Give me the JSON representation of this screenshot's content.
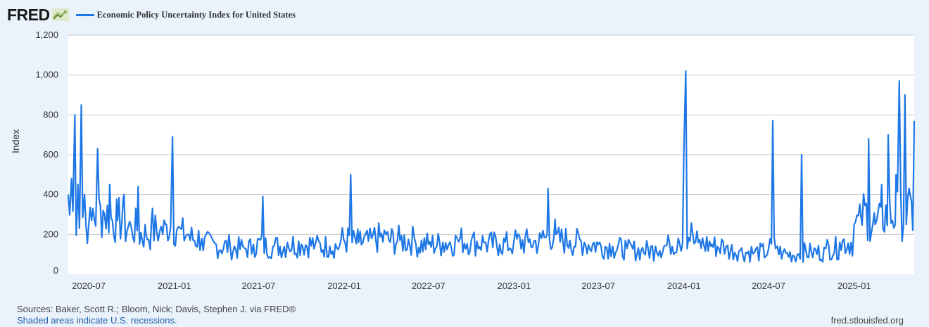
{
  "header": {
    "logo_text": "FRED",
    "logo_mark": "fred-chart-icon",
    "legend_label": "Economic Policy Uncertainty Index for United States"
  },
  "colors": {
    "series": "#1e77e6",
    "background": "#eaf2fb",
    "plot": "#ffffff",
    "grid": "#c8c8c8"
  },
  "footer": {
    "sources": "Sources: Baker, Scott R.; Bloom, Nick; Davis, Stephen J. via FRED®",
    "recessions": "Shaded areas indicate U.S. recessions.",
    "site": "fred.stlouisfed.org"
  },
  "chart_data": {
    "type": "line",
    "ylabel": "Index",
    "ylim": [
      0,
      1200
    ],
    "y_ticks": [
      0,
      200,
      400,
      600,
      800,
      1000,
      1200
    ],
    "y_tick_labels": [
      "0",
      "200",
      "400",
      "600",
      "800",
      "1,000",
      "1,200"
    ],
    "x_range": [
      "2020-05-18",
      "2025-05-10"
    ],
    "x_ticks": [
      "2020-07-01",
      "2021-01-01",
      "2021-07-01",
      "2022-01-01",
      "2022-07-01",
      "2023-01-01",
      "2023-07-01",
      "2024-01-01",
      "2024-07-01",
      "2025-01-01"
    ],
    "x_tick_labels": [
      "2020-07",
      "2021-01",
      "2021-07",
      "2022-01",
      "2022-07",
      "2023-01",
      "2023-07",
      "2024-01",
      "2024-07",
      "2025-01"
    ],
    "grid": "horizontal",
    "series": [
      {
        "name": "Economic Policy Uncertainty Index for United States",
        "x": [
          "2020-05-18",
          "2020-05-25",
          "2020-06-01",
          "2020-06-08",
          "2020-06-15",
          "2020-06-22",
          "2020-07-01",
          "2020-07-10",
          "2020-07-20",
          "2020-08-01",
          "2020-08-15",
          "2020-09-01",
          "2020-09-15",
          "2020-10-01",
          "2020-10-15",
          "2020-11-01",
          "2020-11-15",
          "2020-12-01",
          "2020-12-15",
          "2020-12-28",
          "2021-01-10",
          "2021-02-01",
          "2021-03-01",
          "2021-04-01",
          "2021-05-01",
          "2021-06-01",
          "2021-06-20",
          "2021-07-10",
          "2021-08-01",
          "2021-09-01",
          "2021-10-01",
          "2021-11-01",
          "2021-12-01",
          "2021-12-25",
          "2022-01-15",
          "2022-02-01",
          "2022-03-01",
          "2022-04-01",
          "2022-05-01",
          "2022-06-01",
          "2022-07-01",
          "2022-08-01",
          "2022-09-01",
          "2022-10-01",
          "2022-11-01",
          "2022-12-01",
          "2023-01-01",
          "2023-02-01",
          "2023-03-01",
          "2023-03-15",
          "2023-04-01",
          "2023-05-01",
          "2023-06-01",
          "2023-07-01",
          "2023-08-01",
          "2023-09-01",
          "2023-10-01",
          "2023-11-01",
          "2023-12-01",
          "2023-12-20",
          "2024-01-01",
          "2024-01-05",
          "2024-01-20",
          "2024-02-01",
          "2024-03-01",
          "2024-04-01",
          "2024-05-01",
          "2024-06-01",
          "2024-07-01",
          "2024-07-10",
          "2024-07-20",
          "2024-08-01",
          "2024-09-01",
          "2024-09-10",
          "2024-10-01",
          "2024-11-01",
          "2024-12-01",
          "2025-01-01",
          "2025-01-15",
          "2025-02-01",
          "2025-02-15",
          "2025-03-01",
          "2025-03-15",
          "2025-04-01",
          "2025-04-08",
          "2025-04-20",
          "2025-05-01",
          "2025-05-10"
        ],
        "values": [
          400,
          480,
          800,
          450,
          850,
          400,
          250,
          330,
          630,
          320,
          450,
          270,
          400,
          230,
          440,
          200,
          330,
          220,
          250,
          690,
          240,
          200,
          180,
          150,
          140,
          130,
          150,
          390,
          140,
          160,
          150,
          160,
          140,
          170,
          500,
          160,
          180,
          200,
          170,
          180,
          150,
          160,
          180,
          170,
          160,
          150,
          170,
          160,
          180,
          430,
          200,
          170,
          160,
          150,
          140,
          130,
          120,
          140,
          160,
          180,
          620,
          1020,
          200,
          160,
          150,
          140,
          120,
          110,
          130,
          770,
          140,
          110,
          100,
          600,
          110,
          130,
          160,
          250,
          300,
          680,
          250,
          450,
          700,
          500,
          970,
          900,
          400,
          770
        ]
      }
    ]
  }
}
